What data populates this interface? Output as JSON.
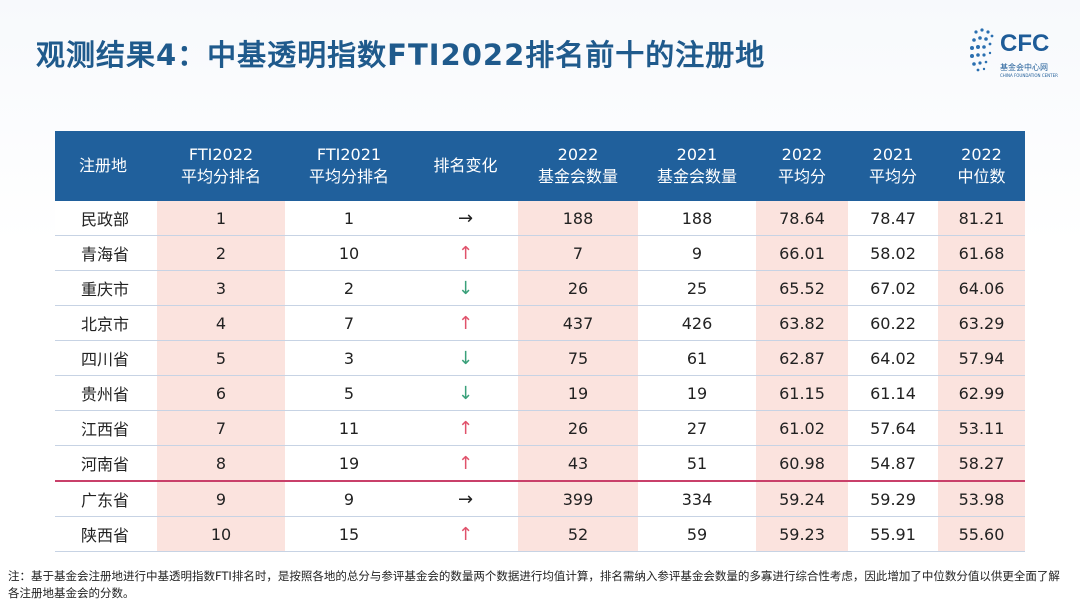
{
  "title": "观测结果4：中基透明指数FTI2022排名前十的注册地",
  "logo": {
    "text": "CFC",
    "cn": "基金会中心网",
    "en": "CHINA FOUNDATION CENTER"
  },
  "colors": {
    "header": "#20609c",
    "highlight": "#fbe3de",
    "up": "#e0526b",
    "down": "#3aa07a",
    "title": "#1f5a8c"
  },
  "table": {
    "headers": [
      [
        "注册地"
      ],
      [
        "FTI2022",
        "平均分排名"
      ],
      [
        "FTI2021",
        "平均分排名"
      ],
      [
        "排名变化"
      ],
      [
        "2022",
        "基金会数量"
      ],
      [
        "2021",
        "基金会数量"
      ],
      [
        "2022",
        "平均分"
      ],
      [
        "2021",
        "平均分"
      ],
      [
        "2022",
        "中位数"
      ]
    ],
    "rows": [
      {
        "place": "民政部",
        "rank2022": "1",
        "rank2021": "1",
        "change": "→",
        "dir": "flat",
        "count2022": "188",
        "count2021": "188",
        "avg2022": "78.64",
        "avg2021": "78.47",
        "median2022": "81.21"
      },
      {
        "place": "青海省",
        "rank2022": "2",
        "rank2021": "10",
        "change": "↑",
        "dir": "up",
        "count2022": "7",
        "count2021": "9",
        "avg2022": "66.01",
        "avg2021": "58.02",
        "median2022": "61.68"
      },
      {
        "place": "重庆市",
        "rank2022": "3",
        "rank2021": "2",
        "change": "↓",
        "dir": "down",
        "count2022": "26",
        "count2021": "25",
        "avg2022": "65.52",
        "avg2021": "67.02",
        "median2022": "64.06"
      },
      {
        "place": "北京市",
        "rank2022": "4",
        "rank2021": "7",
        "change": "↑",
        "dir": "up",
        "count2022": "437",
        "count2021": "426",
        "avg2022": "63.82",
        "avg2021": "60.22",
        "median2022": "63.29"
      },
      {
        "place": "四川省",
        "rank2022": "5",
        "rank2021": "3",
        "change": "↓",
        "dir": "down",
        "count2022": "75",
        "count2021": "61",
        "avg2022": "62.87",
        "avg2021": "64.02",
        "median2022": "57.94"
      },
      {
        "place": "贵州省",
        "rank2022": "6",
        "rank2021": "5",
        "change": "↓",
        "dir": "down",
        "count2022": "19",
        "count2021": "19",
        "avg2022": "61.15",
        "avg2021": "61.14",
        "median2022": "62.99"
      },
      {
        "place": "江西省",
        "rank2022": "7",
        "rank2021": "11",
        "change": "↑",
        "dir": "up",
        "count2022": "26",
        "count2021": "27",
        "avg2022": "61.02",
        "avg2021": "57.64",
        "median2022": "53.11"
      },
      {
        "place": "河南省",
        "rank2022": "8",
        "rank2021": "19",
        "change": "↑",
        "dir": "up",
        "count2022": "43",
        "count2021": "51",
        "avg2022": "60.98",
        "avg2021": "54.87",
        "median2022": "58.27"
      },
      {
        "place": "广东省",
        "rank2022": "9",
        "rank2021": "9",
        "change": "→",
        "dir": "flat",
        "count2022": "399",
        "count2021": "334",
        "avg2022": "59.24",
        "avg2021": "59.29",
        "median2022": "53.98"
      },
      {
        "place": "陕西省",
        "rank2022": "10",
        "rank2021": "15",
        "change": "↑",
        "dir": "up",
        "count2022": "52",
        "count2021": "59",
        "avg2022": "59.23",
        "avg2021": "55.91",
        "median2022": "55.60"
      }
    ]
  },
  "note": "注：基于基金会注册地进行中基透明指数FTI排名时，是按照各地的总分与参评基金会的数量两个数据进行均值计算，排名需纳入参评基金会数量的多寡进行综合性考虑，因此增加了中位数分值以供更全面了解各注册地基金会的分数。"
}
